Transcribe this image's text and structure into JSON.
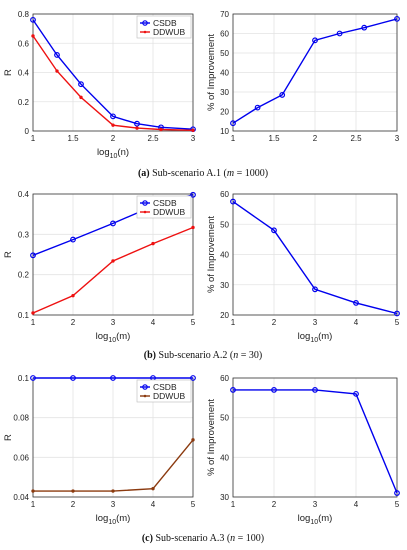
{
  "colors": {
    "csdb": "#0000ee",
    "ddwub_a1": "#ee1111",
    "ddwub_a2": "#ee1111",
    "ddwub_a3": "#8b3a0f",
    "improve": "#0000ee"
  },
  "captions": [
    {
      "label": "(a)",
      "text": "Sub-scenario A.1 (",
      "var": "m",
      "rest": " = 1000)"
    },
    {
      "label": "(b)",
      "text": "Sub-scenario A.2 (",
      "var": "n",
      "rest": " = 30)"
    },
    {
      "label": "(c)",
      "text": "Sub-scenario A.3 (",
      "var": "n",
      "rest": " = 100)"
    }
  ],
  "chart_data": [
    {
      "type": "line",
      "row": 0,
      "col": 0,
      "grid": true,
      "xlabel": "log10(n)",
      "xlabel_main": "log",
      "xlabel_sub": "10",
      "xlabel_rest": "(n)",
      "ylabel": "R",
      "xlim": [
        1,
        3
      ],
      "ylim": [
        0,
        0.8
      ],
      "xticks": [
        1,
        1.5,
        2,
        2.5,
        3
      ],
      "xtick_labels": [
        "1",
        "1.5",
        "2",
        "2.5",
        "3"
      ],
      "yticks": [
        0,
        0.2,
        0.4,
        0.6,
        0.8
      ],
      "ytick_labels": [
        "0",
        "0.2",
        "0.4",
        "0.6",
        "0.8"
      ],
      "legend": "top-right",
      "series": [
        {
          "name": "CSDB",
          "marker": "circle",
          "color_key": "csdb",
          "x": [
            1,
            1.3,
            1.6,
            2,
            2.3,
            2.6,
            3
          ],
          "y": [
            0.76,
            0.52,
            0.32,
            0.1,
            0.05,
            0.025,
            0.012
          ]
        },
        {
          "name": "DDWUB",
          "marker": "dot",
          "color_key": "ddwub_a1",
          "x": [
            1,
            1.3,
            1.6,
            2,
            2.3,
            2.6,
            3
          ],
          "y": [
            0.65,
            0.41,
            0.23,
            0.04,
            0.02,
            0.01,
            0.005
          ]
        }
      ]
    },
    {
      "type": "line",
      "row": 0,
      "col": 1,
      "grid": true,
      "xlabel": "",
      "ylabel": "% of Improvement",
      "xlim": [
        1,
        3
      ],
      "ylim": [
        10,
        70
      ],
      "xticks": [
        1,
        1.5,
        2,
        2.5,
        3
      ],
      "xtick_labels": [
        "1",
        "1.5",
        "2",
        "2.5",
        "3"
      ],
      "yticks": [
        10,
        20,
        30,
        40,
        50,
        60,
        70
      ],
      "ytick_labels": [
        "10",
        "20",
        "30",
        "40",
        "50",
        "60",
        "70"
      ],
      "series": [
        {
          "marker": "circle",
          "color_key": "improve",
          "x": [
            1,
            1.3,
            1.6,
            2,
            2.3,
            2.6,
            3
          ],
          "y": [
            14,
            22,
            28.5,
            56.5,
            60,
            63,
            67.5
          ]
        }
      ]
    },
    {
      "type": "line",
      "row": 1,
      "col": 0,
      "grid": true,
      "xlabel": "log10(m)",
      "xlabel_main": "log",
      "xlabel_sub": "10",
      "xlabel_rest": "(m)",
      "ylabel": "R",
      "xlim": [
        1,
        5
      ],
      "ylim": [
        0.1,
        0.4
      ],
      "xticks": [
        1,
        2,
        3,
        4,
        5
      ],
      "xtick_labels": [
        "1",
        "2",
        "3",
        "4",
        "5"
      ],
      "yticks": [
        0.1,
        0.2,
        0.3,
        0.4
      ],
      "ytick_labels": [
        "0.1",
        "0.2",
        "0.3",
        "0.4"
      ],
      "legend": "top-right",
      "series": [
        {
          "name": "CSDB",
          "marker": "circle",
          "color_key": "csdb",
          "x": [
            1,
            2,
            3,
            4,
            5
          ],
          "y": [
            0.248,
            0.287,
            0.327,
            0.37,
            0.398
          ]
        },
        {
          "name": "DDWUB",
          "marker": "dot",
          "color_key": "ddwub_a2",
          "x": [
            1,
            2,
            3,
            4,
            5
          ],
          "y": [
            0.105,
            0.148,
            0.234,
            0.277,
            0.317
          ]
        }
      ]
    },
    {
      "type": "line",
      "row": 1,
      "col": 1,
      "grid": true,
      "xlabel": "log10(m)",
      "xlabel_main": "log",
      "xlabel_sub": "10",
      "xlabel_rest": "(m)",
      "ylabel": "% of Improvement",
      "xlim": [
        1,
        5
      ],
      "ylim": [
        20,
        60
      ],
      "xticks": [
        1,
        2,
        3,
        4,
        5
      ],
      "xtick_labels": [
        "1",
        "2",
        "3",
        "4",
        "5"
      ],
      "yticks": [
        20,
        30,
        40,
        50,
        60
      ],
      "ytick_labels": [
        "20",
        "30",
        "40",
        "50",
        "60"
      ],
      "series": [
        {
          "marker": "circle",
          "color_key": "improve",
          "x": [
            1,
            2,
            3,
            4,
            5
          ],
          "y": [
            57.5,
            48,
            28.5,
            24,
            20.5
          ]
        }
      ]
    },
    {
      "type": "line",
      "row": 2,
      "col": 0,
      "grid": true,
      "xlabel": "log10(m)",
      "xlabel_main": "log",
      "xlabel_sub": "10",
      "xlabel_rest": "(m)",
      "ylabel": "R",
      "xlim": [
        1,
        5
      ],
      "ylim": [
        0.04,
        0.1
      ],
      "xticks": [
        1,
        2,
        3,
        4,
        5
      ],
      "xtick_labels": [
        "1",
        "2",
        "3",
        "4",
        "5"
      ],
      "yticks": [
        0.04,
        0.06,
        0.08,
        0.1
      ],
      "ytick_labels": [
        "0.04",
        "0.06",
        "0.08",
        "0.1"
      ],
      "legend": "top-right",
      "series": [
        {
          "name": "CSDB",
          "marker": "circle",
          "color_key": "csdb",
          "x": [
            1,
            2,
            3,
            4,
            5
          ],
          "y": [
            0.1,
            0.1,
            0.1,
            0.1,
            0.1
          ]
        },
        {
          "name": "DDWUB",
          "marker": "dot",
          "color_key": "ddwub_a3",
          "x": [
            1,
            2,
            3,
            4,
            5
          ],
          "y": [
            0.043,
            0.043,
            0.043,
            0.0442,
            0.0688
          ]
        }
      ]
    },
    {
      "type": "line",
      "row": 2,
      "col": 1,
      "grid": true,
      "xlabel": "log10(m)",
      "xlabel_main": "log",
      "xlabel_sub": "10",
      "xlabel_rest": "(m)",
      "ylabel": "% of Improvement",
      "xlim": [
        1,
        5
      ],
      "ylim": [
        30,
        60
      ],
      "xticks": [
        1,
        2,
        3,
        4,
        5
      ],
      "xtick_labels": [
        "1",
        "2",
        "3",
        "4",
        "5"
      ],
      "yticks": [
        30,
        40,
        50,
        60
      ],
      "ytick_labels": [
        "30",
        "40",
        "50",
        "60"
      ],
      "series": [
        {
          "marker": "circle",
          "color_key": "improve",
          "x": [
            1,
            2,
            3,
            4,
            5
          ],
          "y": [
            57,
            57,
            57,
            56,
            31
          ]
        }
      ]
    }
  ]
}
